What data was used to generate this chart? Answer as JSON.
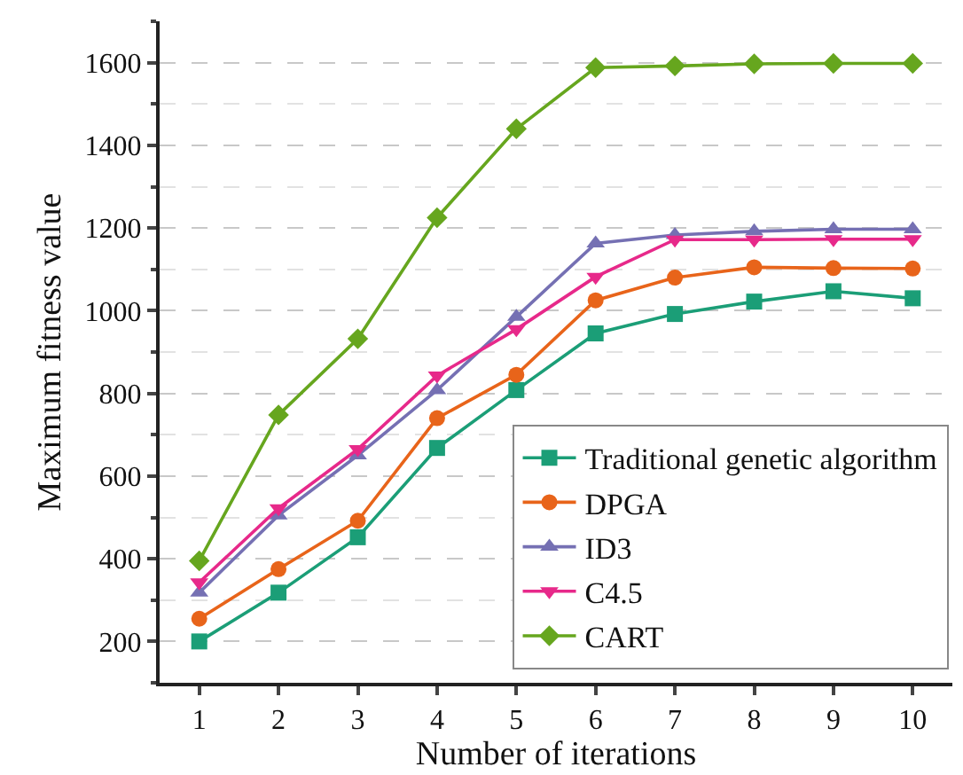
{
  "chart_data": {
    "type": "line",
    "xlabel": "Number of iterations",
    "ylabel": "Maximum fitness value",
    "x": [
      1,
      2,
      3,
      4,
      5,
      6,
      7,
      8,
      9,
      10
    ],
    "xlim": [
      0.5,
      10.5
    ],
    "xticks": [
      1,
      2,
      3,
      4,
      5,
      6,
      7,
      8,
      9,
      10
    ],
    "ylim": [
      100,
      1700
    ],
    "yticks": [
      200,
      400,
      600,
      800,
      1000,
      1200,
      1400,
      1600
    ],
    "grid": "y",
    "legend": "bottom right",
    "line_style": "solid",
    "series": [
      {
        "name": "Traditional genetic algorithm",
        "color": "#1b9e77",
        "marker": "square",
        "values": [
          200,
          318,
          452,
          668,
          808,
          945,
          992,
          1022,
          1047,
          1030
        ]
      },
      {
        "name": "DPGA",
        "color": "#e8641a",
        "marker": "circle",
        "values": [
          255,
          375,
          492,
          740,
          845,
          1025,
          1080,
          1105,
          1103,
          1102
        ]
      },
      {
        "name": "ID3",
        "color": "#7570b3",
        "marker": "triangle",
        "values": [
          318,
          505,
          650,
          808,
          985,
          1163,
          1183,
          1192,
          1197,
          1197
        ]
      },
      {
        "name": "C4.5",
        "color": "#e7298a",
        "marker": "triangle-down",
        "values": [
          343,
          522,
          665,
          843,
          955,
          1082,
          1172,
          1172,
          1173,
          1173
        ]
      },
      {
        "name": "CART",
        "color": "#66a61e",
        "marker": "diamond",
        "values": [
          395,
          748,
          932,
          1225,
          1440,
          1588,
          1592,
          1597,
          1598,
          1598
        ]
      }
    ]
  }
}
